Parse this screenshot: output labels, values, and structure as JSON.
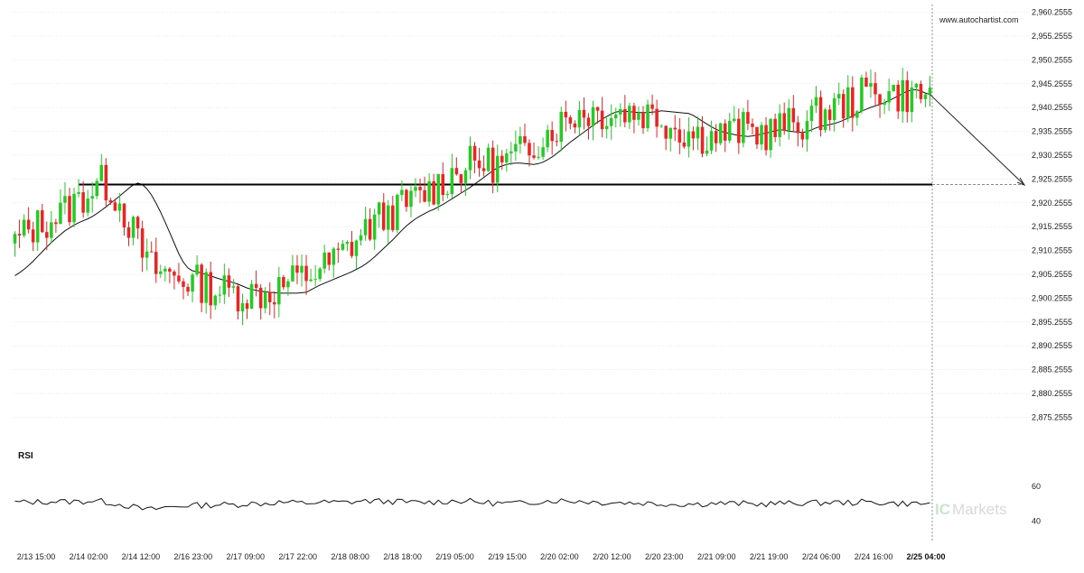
{
  "watermark": "www.autochartist.com",
  "rsi_label": "RSI",
  "brand": {
    "prefix": "IC",
    "suffix": "Markets"
  },
  "colors": {
    "up": "#22cc22",
    "down": "#ee2222",
    "line": "#111111",
    "grid": "#dddddd"
  },
  "chart_data": [
    {
      "type": "candlestick",
      "title": "",
      "y_ticks": [
        "2,960.2555",
        "2,955.2555",
        "2,950.2555",
        "2,945.2555",
        "2,940.2555",
        "2,935.2555",
        "2,930.2555",
        "2,925.2555",
        "2,920.2555",
        "2,915.2555",
        "2,910.2555",
        "2,905.2555",
        "2,900.2555",
        "2,895.2555",
        "2,890.2555",
        "2,885.2555",
        "2,880.2555",
        "2,875.2555"
      ],
      "ylim": [
        2872.5,
        2961.5
      ],
      "x_ticks": [
        "2/13 15:00",
        "2/14 02:00",
        "2/14 12:00",
        "2/16 23:00",
        "2/17 09:00",
        "2/17 22:00",
        "2/18 08:00",
        "2/18 18:00",
        "2/19 05:00",
        "2/19 15:00",
        "2/20 02:00",
        "2/20 12:00",
        "2/20 23:00",
        "2/21 09:00",
        "2/21 19:00",
        "2/24 06:00",
        "2/24 16:00",
        "2/25 04:00"
      ],
      "support_level": 2924.1,
      "support_start_index": 14,
      "forecast_target": {
        "index_offset": 16,
        "value": 2924.0
      },
      "moving_average": [
        2905.0,
        2905.6,
        2906.3,
        2907.1,
        2908.0,
        2909.0,
        2910.0,
        2911.0,
        2911.9,
        2912.8,
        2913.6,
        2914.4,
        2915.0,
        2915.6,
        2916.1,
        2916.5,
        2916.9,
        2917.4,
        2918.0,
        2918.7,
        2919.4,
        2920.2,
        2920.9,
        2921.7,
        2922.5,
        2923.3,
        2924.0,
        2924.4,
        2924.1,
        2923.2,
        2921.9,
        2920.2,
        2918.3,
        2916.2,
        2914.0,
        2911.8,
        2909.6,
        2907.8,
        2906.6,
        2906.0,
        2905.8,
        2905.5,
        2905.2,
        2904.9,
        2904.6,
        2904.3,
        2904.0,
        2903.8,
        2903.5,
        2903.2,
        2902.8,
        2902.4,
        2902.1,
        2901.9,
        2901.7,
        2901.6,
        2901.5,
        2901.4,
        2901.3,
        2901.3,
        2901.3,
        2901.3,
        2901.3,
        2901.4,
        2901.5,
        2902.0,
        2902.5,
        2903.0,
        2903.4,
        2903.8,
        2904.2,
        2904.6,
        2905.0,
        2905.4,
        2905.8,
        2906.3,
        2906.8,
        2907.4,
        2908.1,
        2908.9,
        2909.8,
        2910.7,
        2911.6,
        2912.5,
        2913.5,
        2914.5,
        2915.4,
        2916.2,
        2916.9,
        2917.5,
        2918.0,
        2918.5,
        2918.9,
        2919.4,
        2919.9,
        2920.5,
        2921.1,
        2921.7,
        2922.3,
        2922.9,
        2923.5,
        2924.2,
        2924.9,
        2925.6,
        2926.3,
        2927.0,
        2927.6,
        2928.0,
        2928.3,
        2928.5,
        2928.6,
        2928.6,
        2928.5,
        2928.4,
        2928.3,
        2928.5,
        2928.8,
        2929.3,
        2929.9,
        2930.6,
        2931.4,
        2932.2,
        2933.0,
        2933.7,
        2934.4,
        2935.1,
        2935.8,
        2936.5,
        2937.2,
        2937.8,
        2938.4,
        2938.9,
        2939.3,
        2939.5,
        2939.5,
        2939.4,
        2939.3,
        2939.2,
        2939.2,
        2939.2,
        2939.3,
        2939.4,
        2939.6,
        2939.5,
        2939.4,
        2939.3,
        2939.2,
        2939.1,
        2939.0,
        2938.6,
        2938.0,
        2937.4,
        2936.8,
        2936.2,
        2935.7,
        2935.3,
        2935.0,
        2934.8,
        2934.6,
        2934.4,
        2934.3,
        2934.2,
        2934.3,
        2934.5,
        2934.7,
        2934.9,
        2935.1,
        2935.4,
        2935.6,
        2935.5,
        2935.3,
        2935.2,
        2935.1,
        2935.0,
        2935.2,
        2935.6,
        2936.0,
        2936.3,
        2936.5,
        2936.7,
        2936.9,
        2937.2,
        2937.6,
        2938.0,
        2938.5,
        2939.0,
        2939.5,
        2939.9,
        2940.3,
        2940.6,
        2940.9,
        2941.3,
        2941.7,
        2942.2,
        2942.7,
        2943.2,
        2943.7,
        2943.9,
        2944.0,
        2943.7,
        2943.3,
        2943.0
      ]
    },
    {
      "type": "line",
      "title": "RSI",
      "y_ticks": [
        "60",
        "40"
      ],
      "ylim": [
        36,
        70
      ]
    }
  ]
}
